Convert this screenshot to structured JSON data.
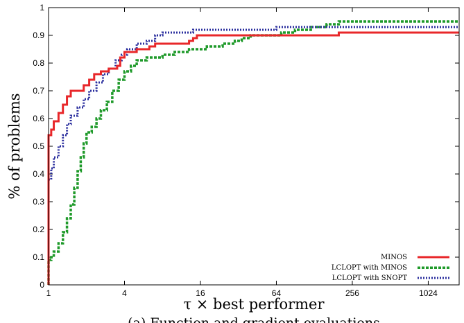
{
  "chart_data": {
    "type": "line",
    "xlabel": "τ × best performer",
    "ylabel": "% of problems",
    "caption": "(a) Function and gradient evaluations",
    "xscale": "log2",
    "xlim": [
      1,
      1800
    ],
    "ylim": [
      0,
      1
    ],
    "xticks": [
      1,
      4,
      16,
      64,
      256,
      1024
    ],
    "xtick_labels": [
      "1",
      "4",
      "16",
      "64",
      "256",
      "1024"
    ],
    "yticks": [
      0,
      0.1,
      0.2,
      0.3,
      0.4,
      0.5,
      0.6,
      0.7,
      0.8,
      0.9,
      1
    ],
    "ytick_labels": [
      "0",
      "0.1",
      "0.2",
      "0.3",
      "0.4",
      "0.5",
      "0.6",
      "0.7",
      "0.8",
      "0.9",
      "1"
    ],
    "grid": false,
    "legend_position": "bottom-right",
    "series": [
      {
        "name": "MINOS",
        "color": "#e8272a",
        "style": "solid",
        "points": [
          [
            1,
            0
          ],
          [
            1,
            0.54
          ],
          [
            1.05,
            0.56
          ],
          [
            1.1,
            0.59
          ],
          [
            1.2,
            0.62
          ],
          [
            1.3,
            0.65
          ],
          [
            1.4,
            0.68
          ],
          [
            1.5,
            0.7
          ],
          [
            1.8,
            0.7
          ],
          [
            1.9,
            0.72
          ],
          [
            2.1,
            0.74
          ],
          [
            2.3,
            0.76
          ],
          [
            2.6,
            0.77
          ],
          [
            3.0,
            0.78
          ],
          [
            3.5,
            0.79
          ],
          [
            3.7,
            0.82
          ],
          [
            4.0,
            0.84
          ],
          [
            4.8,
            0.84
          ],
          [
            5.0,
            0.85
          ],
          [
            6.0,
            0.85
          ],
          [
            6.3,
            0.86
          ],
          [
            7.0,
            0.87
          ],
          [
            12,
            0.87
          ],
          [
            13,
            0.88
          ],
          [
            14,
            0.89
          ],
          [
            15,
            0.9
          ],
          [
            40,
            0.9
          ],
          [
            42,
            0.9
          ],
          [
            200,
            0.91
          ],
          [
            1800,
            0.91
          ]
        ]
      },
      {
        "name": "LCLOPT with MINOS",
        "color": "#1f9a2a",
        "style": "dashed",
        "points": [
          [
            1,
            0
          ],
          [
            1,
            0.09
          ],
          [
            1.05,
            0.1
          ],
          [
            1.1,
            0.12
          ],
          [
            1.2,
            0.15
          ],
          [
            1.3,
            0.19
          ],
          [
            1.4,
            0.24
          ],
          [
            1.5,
            0.29
          ],
          [
            1.6,
            0.35
          ],
          [
            1.7,
            0.41
          ],
          [
            1.8,
            0.46
          ],
          [
            1.9,
            0.51
          ],
          [
            2.0,
            0.55
          ],
          [
            2.2,
            0.57
          ],
          [
            2.4,
            0.6
          ],
          [
            2.6,
            0.63
          ],
          [
            2.9,
            0.66
          ],
          [
            3.2,
            0.7
          ],
          [
            3.6,
            0.74
          ],
          [
            4.0,
            0.77
          ],
          [
            4.5,
            0.79
          ],
          [
            5.0,
            0.81
          ],
          [
            6.0,
            0.82
          ],
          [
            8.0,
            0.83
          ],
          [
            10,
            0.84
          ],
          [
            13,
            0.85
          ],
          [
            18,
            0.86
          ],
          [
            24,
            0.87
          ],
          [
            30,
            0.88
          ],
          [
            34,
            0.89
          ],
          [
            40,
            0.9
          ],
          [
            70,
            0.91
          ],
          [
            90,
            0.92
          ],
          [
            120,
            0.93
          ],
          [
            160,
            0.94
          ],
          [
            200,
            0.95
          ],
          [
            1800,
            0.95
          ]
        ]
      },
      {
        "name": "LCLOPT with SNOPT",
        "color": "#2b2f9e",
        "style": "dotted",
        "points": [
          [
            1,
            0
          ],
          [
            1,
            0.38
          ],
          [
            1.05,
            0.42
          ],
          [
            1.1,
            0.46
          ],
          [
            1.2,
            0.5
          ],
          [
            1.3,
            0.54
          ],
          [
            1.4,
            0.58
          ],
          [
            1.5,
            0.61
          ],
          [
            1.7,
            0.64
          ],
          [
            1.9,
            0.67
          ],
          [
            2.1,
            0.7
          ],
          [
            2.4,
            0.73
          ],
          [
            2.7,
            0.76
          ],
          [
            3.0,
            0.78
          ],
          [
            3.4,
            0.81
          ],
          [
            3.8,
            0.83
          ],
          [
            4.2,
            0.85
          ],
          [
            5.0,
            0.87
          ],
          [
            6.0,
            0.88
          ],
          [
            7.0,
            0.9
          ],
          [
            8.0,
            0.91
          ],
          [
            13,
            0.91
          ],
          [
            14,
            0.92
          ],
          [
            60,
            0.92
          ],
          [
            64,
            0.93
          ],
          [
            1800,
            0.93
          ]
        ]
      }
    ]
  }
}
